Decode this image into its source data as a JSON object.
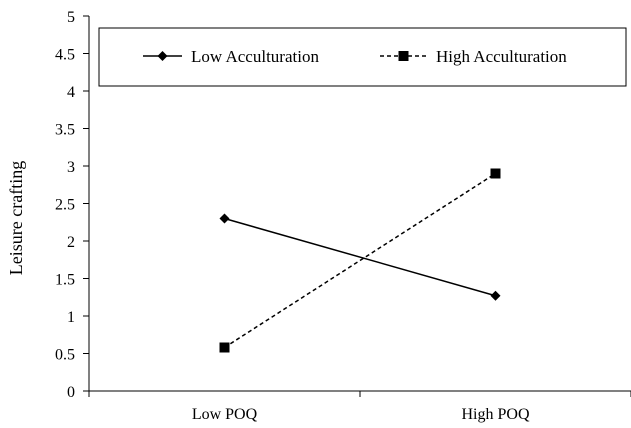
{
  "chart_data": {
    "type": "line",
    "title": "",
    "xlabel": "",
    "ylabel": "Leisure crafting",
    "categories": [
      "Low POQ",
      "High POQ"
    ],
    "ylim": [
      0,
      5
    ],
    "yticks": [
      "0",
      "0.5",
      "1",
      "1.5",
      "2",
      "2.5",
      "3",
      "3.5",
      "4",
      "4.5",
      "5"
    ],
    "grid": false,
    "legend_position": "top (boxed, inside plot)",
    "series": [
      {
        "name": "Low Acculturation",
        "values": [
          2.3,
          1.27
        ],
        "marker": "diamond",
        "dash": "solid",
        "color": "#000000"
      },
      {
        "name": "High Acculturation",
        "values": [
          0.58,
          2.9
        ],
        "marker": "square",
        "dash": "dashed",
        "color": "#000000"
      }
    ]
  }
}
